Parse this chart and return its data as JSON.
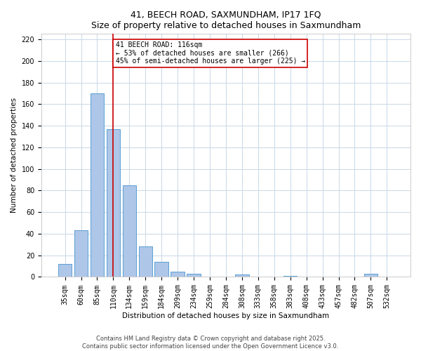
{
  "title": "41, BEECH ROAD, SAXMUNDHAM, IP17 1FQ",
  "subtitle": "Size of property relative to detached houses in Saxmundham",
  "xlabel": "Distribution of detached houses by size in Saxmundham",
  "ylabel": "Number of detached properties",
  "bar_labels": [
    "35sqm",
    "60sqm",
    "85sqm",
    "110sqm",
    "134sqm",
    "159sqm",
    "184sqm",
    "209sqm",
    "234sqm",
    "259sqm",
    "284sqm",
    "308sqm",
    "333sqm",
    "358sqm",
    "383sqm",
    "408sqm",
    "433sqm",
    "457sqm",
    "482sqm",
    "507sqm",
    "532sqm"
  ],
  "bar_values": [
    12,
    43,
    170,
    137,
    85,
    28,
    14,
    5,
    3,
    0,
    0,
    2,
    0,
    0,
    1,
    0,
    0,
    0,
    0,
    3,
    0
  ],
  "bar_color": "#aec6e8",
  "bar_edge_color": "#5a9fd4",
  "vline_x_index": 3,
  "vline_color": "#cc0000",
  "annotation_title": "41 BEECH ROAD: 116sqm",
  "annotation_line1": "← 53% of detached houses are smaller (266)",
  "annotation_line2": "45% of semi-detached houses are larger (225) →",
  "annotation_box_edge_color": "#cc0000",
  "annotation_box_face_color": "#ffffff",
  "ylim": [
    0,
    225
  ],
  "yticks": [
    0,
    20,
    40,
    60,
    80,
    100,
    120,
    140,
    160,
    180,
    200,
    220
  ],
  "footer_line1": "Contains HM Land Registry data © Crown copyright and database right 2025.",
  "footer_line2": "Contains public sector information licensed under the Open Government Licence v3.0.",
  "background_color": "#ffffff",
  "grid_color": "#c8d8e8",
  "title_fontsize": 9,
  "subtitle_fontsize": 8,
  "axis_label_fontsize": 7.5,
  "tick_fontsize": 7,
  "annotation_fontsize": 7,
  "footer_fontsize": 6
}
